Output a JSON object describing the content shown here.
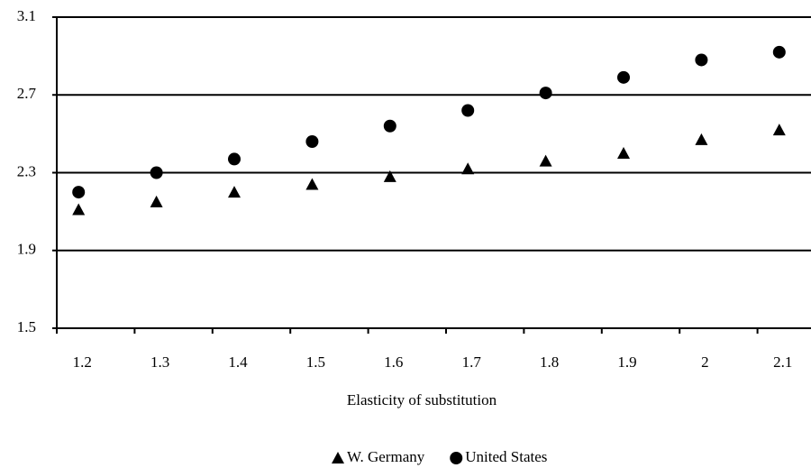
{
  "chart_data": {
    "type": "scatter",
    "x_label": "Elasticity of substitution",
    "categories": [
      "1.2",
      "1.3",
      "1.4",
      "1.5",
      "1.6",
      "1.7",
      "1.8",
      "1.9",
      "2",
      "2.1"
    ],
    "series": [
      {
        "name": "W. Germany",
        "color": "#000000",
        "marker": "triangle",
        "values": [
          2.11,
          2.15,
          2.2,
          2.24,
          2.28,
          2.32,
          2.36,
          2.4,
          2.47,
          2.52
        ]
      },
      {
        "name": "United States",
        "color": "#000000",
        "marker": "circle",
        "values": [
          2.2,
          2.3,
          2.37,
          2.46,
          2.54,
          2.62,
          2.71,
          2.79,
          2.88,
          2.92
        ]
      }
    ],
    "ylim": [
      1.5,
      3.1
    ],
    "yticks": [
      1.5,
      1.9,
      2.3,
      2.7,
      3.1
    ],
    "grid": true
  }
}
